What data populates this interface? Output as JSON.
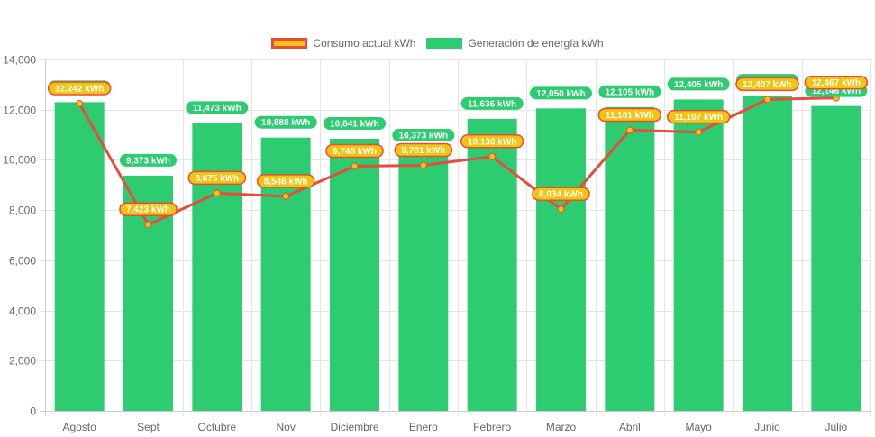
{
  "chart_data": {
    "type": "bar",
    "title": "",
    "xlabel": "",
    "ylabel": "",
    "ylim": [
      0,
      14000
    ],
    "yticks": [
      0,
      2000,
      4000,
      6000,
      8000,
      10000,
      12000,
      14000
    ],
    "ytick_labels": [
      "0",
      "2,000",
      "4,000",
      "6,000",
      "8,000",
      "10,000",
      "12,000",
      "14,000"
    ],
    "grid": true,
    "legend_position": "top-center",
    "categories": [
      "Agosto",
      "Sept",
      "Octubre",
      "Nov",
      "Diciembre",
      "Enero",
      "Febrero",
      "Marzo",
      "Abril",
      "Mayo",
      "Junio",
      "Julio"
    ],
    "series": [
      {
        "name": "Consumo actual kWh",
        "type": "line",
        "color": "#e74c3c",
        "point_color": "#f1c40f",
        "label_bg": "#f1c40f",
        "label_border": "#e74c3c",
        "values": [
          12242,
          7423,
          8675,
          8546,
          9748,
          9781,
          10130,
          8034,
          11181,
          11107,
          12407,
          12467
        ],
        "labels": [
          "12,242 kWh",
          "7,423 kWh",
          "8,675 kWh",
          "8,546 kWh",
          "9,748 kWh",
          "9,781 kWh",
          "10,130 kWh",
          "8,034 kWh",
          "11,181 kWh",
          "11,107 kWh",
          "12,407 kWh",
          "12,467 kWh"
        ]
      },
      {
        "name": "Generación de energía kWh",
        "type": "bar",
        "color": "#2ecc71",
        "label_bg": "#2ecc71",
        "values": [
          12300,
          9373,
          11473,
          10888,
          10841,
          10373,
          11636,
          12050,
          12105,
          12405,
          12560,
          12146
        ],
        "labels": [
          "",
          "9,373 kWh",
          "11,473 kWh",
          "10,888 kWh",
          "10,841 kWh",
          "10,373 kWh",
          "11,636 kWh",
          "12,050 kWh",
          "12,105 kWh",
          "12,405 kWh",
          "",
          "12,146 kWh"
        ]
      }
    ]
  },
  "legend": [
    {
      "label": "Consumo actual kWh",
      "fill": "#f1c40f",
      "border": "#e74c3c"
    },
    {
      "label": "Generación de energía kWh",
      "fill": "#2ecc71",
      "border": "#2ecc71"
    }
  ]
}
